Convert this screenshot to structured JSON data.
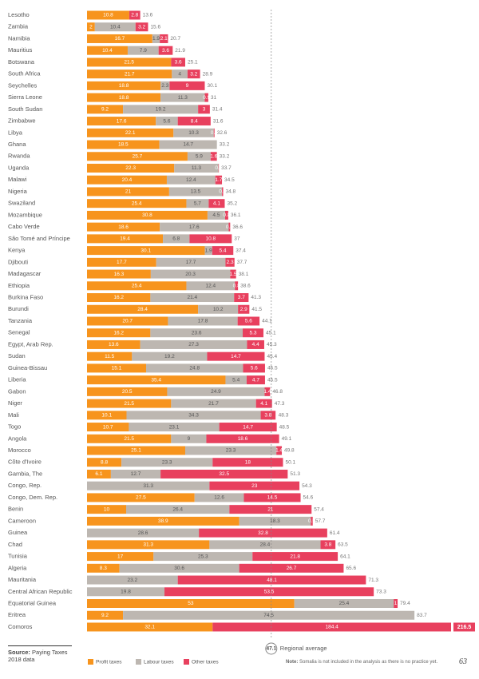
{
  "chart_data": {
    "type": "bar",
    "categories": [
      "Lesotho",
      "Zambia",
      "Namibia",
      "Mauritius",
      "Botswana",
      "South Africa",
      "Seychelles",
      "Sierra Leone",
      "South Sudan",
      "Zimbabwe",
      "Libya",
      "Ghana",
      "Rwanda",
      "Uganda",
      "Malawi",
      "Nigeria",
      "Swaziland",
      "Mozambique",
      "Cabo Verde",
      "São Tomé and Príncipe",
      "Kenya",
      "Djibouti",
      "Madagascar",
      "Ethiopia",
      "Burkina Faso",
      "Burundi",
      "Tanzania",
      "Senegal",
      "Egypt, Arab Rep.",
      "Sudan",
      "Guinea-Bissau",
      "Liberia",
      "Gabon",
      "Niger",
      "Mali",
      "Togo",
      "Angola",
      "Morocco",
      "Côte d'Ivoire",
      "Gambia, The",
      "Congo, Rep.",
      "Congo, Dem. Rep.",
      "Benin",
      "Cameroon",
      "Guinea",
      "Chad",
      "Tunisia",
      "Algeria",
      "Mauritania",
      "Central African Republic",
      "Equatorial Guinea",
      "Eritrea",
      "Comoros"
    ],
    "series": [
      {
        "name": "Profit taxes",
        "color": "#f7941d",
        "values": [
          10.8,
          2.0,
          16.7,
          10.4,
          21.5,
          21.7,
          18.8,
          18.8,
          9.2,
          17.6,
          22.1,
          18.5,
          25.7,
          22.3,
          20.4,
          21.0,
          25.4,
          30.8,
          18.6,
          19.4,
          30.1,
          17.7,
          16.3,
          25.4,
          16.2,
          28.4,
          20.7,
          16.2,
          13.6,
          11.5,
          15.1,
          35.4,
          20.5,
          21.5,
          10.1,
          10.7,
          21.5,
          25.1,
          8.8,
          6.1,
          null,
          27.5,
          10.0,
          38.9,
          null,
          31.3,
          17.0,
          8.3,
          null,
          null,
          53.0,
          9.2,
          32.1
        ]
      },
      {
        "name": "Labour taxes",
        "color": "#bdb7b1",
        "values": [
          null,
          10.4,
          1.9,
          7.9,
          null,
          4.0,
          2.3,
          11.3,
          19.2,
          5.6,
          10.3,
          14.7,
          5.9,
          11.3,
          12.4,
          13.5,
          5.7,
          4.5,
          17.6,
          6.8,
          1.9,
          17.7,
          20.3,
          12.4,
          21.4,
          10.2,
          17.8,
          23.6,
          27.3,
          19.2,
          24.8,
          5.4,
          24.9,
          21.7,
          34.3,
          23.1,
          9.0,
          23.3,
          23.3,
          12.7,
          31.3,
          12.6,
          26.4,
          18.3,
          28.6,
          28.4,
          25.3,
          30.6,
          23.2,
          19.8,
          25.4,
          74.5,
          null
        ]
      },
      {
        "name": "Other taxes",
        "color": "#e8405e",
        "values": [
          2.8,
          3.2,
          2.1,
          3.6,
          3.6,
          3.2,
          9.0,
          0.9,
          3.0,
          8.4,
          0.2,
          null,
          1.6,
          0.1,
          1.7,
          0.3,
          4.1,
          0.8,
          0.4,
          10.8,
          5.4,
          2.3,
          1.5,
          0.8,
          3.7,
          2.9,
          5.6,
          5.3,
          4.4,
          14.7,
          5.6,
          4.7,
          1.4,
          4.1,
          3.8,
          14.7,
          18.6,
          1.4,
          18.0,
          32.5,
          23.0,
          14.5,
          21.0,
          0.5,
          32.8,
          3.8,
          21.8,
          26.7,
          48.1,
          53.5,
          1.0,
          null,
          184.4
        ]
      }
    ],
    "totals": [
      13.6,
      15.6,
      20.7,
      21.9,
      25.1,
      28.9,
      30.1,
      31.0,
      31.4,
      31.6,
      32.6,
      33.2,
      33.2,
      33.7,
      34.5,
      34.8,
      35.2,
      36.1,
      36.6,
      37.0,
      37.4,
      37.7,
      38.1,
      38.6,
      41.3,
      41.5,
      44.1,
      45.1,
      45.3,
      45.4,
      45.5,
      45.5,
      46.8,
      47.3,
      48.3,
      48.5,
      49.1,
      49.8,
      50.1,
      51.3,
      54.3,
      54.6,
      57.4,
      57.7,
      61.4,
      63.5,
      64.1,
      65.6,
      71.3,
      73.3,
      79.4,
      83.7,
      216.5
    ],
    "regional_average": {
      "value": 47.1,
      "label": "Regional average"
    },
    "source_label": "Source:",
    "source": "Paying Taxes 2018 data",
    "note_label": "Note:",
    "note": "Somalia is not included in the analysis as there is no practice yet.",
    "page_number": "63"
  }
}
